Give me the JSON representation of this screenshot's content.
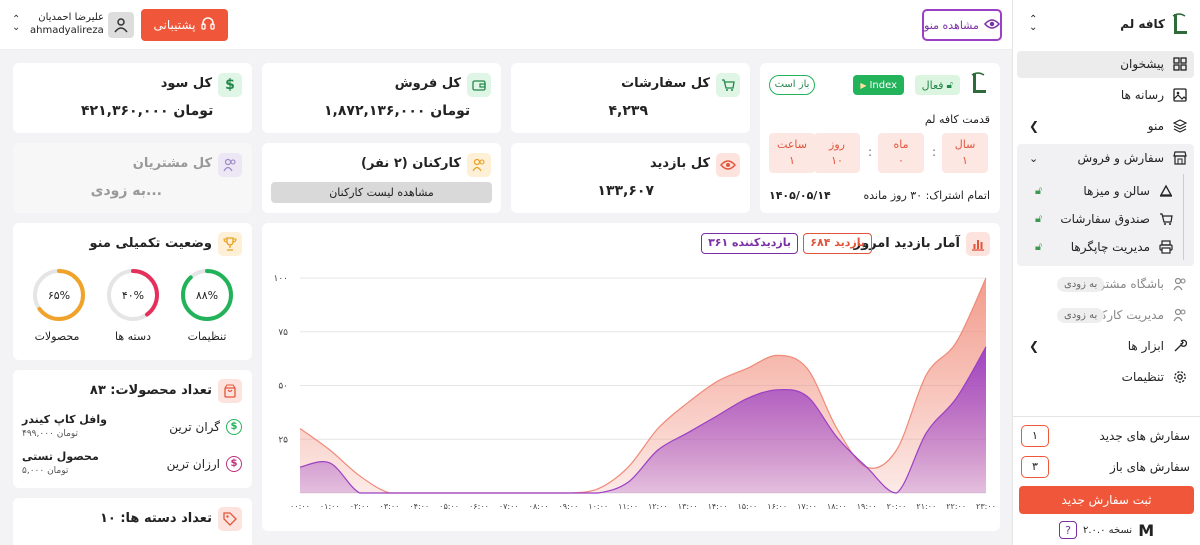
{
  "header": {
    "preview_menu": "مشاهده منو",
    "support": "پشتیبانی",
    "user_name": "علیرضا احمدیان",
    "user_handle": "ahmadyalireza\\1..."
  },
  "sidebar": {
    "brand": "کافه لم",
    "items": [
      {
        "label": "پیشخوان"
      },
      {
        "label": "رسانه ها"
      },
      {
        "label": "منو"
      },
      {
        "label": "سفارش و فروش"
      },
      {
        "label": "سالن و میزها"
      },
      {
        "label": "صندوق سفارشات"
      },
      {
        "label": "مدیریت چاپگرها"
      },
      {
        "label": "باشگاه مشتریان",
        "badge": "به زودی"
      },
      {
        "label": "مدیریت کارکنان",
        "badge": "به زودی"
      },
      {
        "label": "ابزار ها"
      },
      {
        "label": "تنظیمات"
      }
    ],
    "new_orders_label": "سفارش های جدید",
    "new_orders_count": "۱",
    "open_orders_label": "سفارش های باز",
    "open_orders_count": "۳",
    "submit_order": "ثبت سفارش جدید",
    "version": "نسخه ۲.۰.۰"
  },
  "cafe_card": {
    "status_open": "باز است",
    "status_active": "فعال",
    "index_badge": "Index",
    "seniority_label": "قدمت کافه لم",
    "units": [
      {
        "label": "سال",
        "value": "۱"
      },
      {
        "label": "ماه",
        "value": "۰"
      },
      {
        "label": "روز",
        "value": "۱۰"
      },
      {
        "label": "ساعت",
        "value": "۱"
      }
    ],
    "subscription_text": "اتمام اشتراک: ۳۰ روز مانده",
    "subscription_date": "۱۴۰۵/۰۵/۱۴"
  },
  "stats": {
    "orders_title": "کل سفارشات",
    "orders_value": "۴,۲۳۹",
    "sales_title": "کل فروش",
    "sales_value": "۱,۸۷۲,۱۳۶,۰۰۰ تومان",
    "profit_title": "کل سود",
    "profit_value": "۴۲۱,۳۶۰,۰۰۰ تومان",
    "visits_title": "کل بازدید",
    "visits_value": "۱۳۳,۶۰۷",
    "staff_title": "کارکنان (۲ نفر)",
    "staff_button": "مشاهده لیست کارکنان",
    "customers_title": "کل مشتریان",
    "customers_value": "به زودی..."
  },
  "menu_completion": {
    "title": "وضعیت تکمیلی منو",
    "rings": [
      {
        "label": "تنظیمات",
        "value_text": "۸۸%",
        "value": 88,
        "color": "#22b35a"
      },
      {
        "label": "دسته ها",
        "value_text": "۴۰%",
        "value": 40,
        "color": "#e6305c"
      },
      {
        "label": "محصولات",
        "value_text": "۶۵%",
        "value": 65,
        "color": "#f0a32a"
      }
    ]
  },
  "products": {
    "title": "تعداد محصولات: ۸۳",
    "most_expensive_label": "گران ترین",
    "most_expensive_name": "وافل کاپ کیندر",
    "most_expensive_price": "۴۹۹,۰۰۰ تومان",
    "cheapest_label": "ارزان ترین",
    "cheapest_name": "محصول تستی",
    "cheapest_price": "۵,۰۰۰ تومان"
  },
  "categories": {
    "title": "تعداد دسته ها: ۱۰"
  },
  "chart_data": {
    "type": "area",
    "title": "آمار بازدید امروز",
    "badge_visits": "۶۸۴ بازدید",
    "badge_visitors": "۳۶۱ بازدیدکننده",
    "ylim": [
      0,
      100
    ],
    "y_ticks": [
      "۱۰۰",
      "۷۵",
      "۵۰",
      "۲۵"
    ],
    "x": [
      "۰۰:۰۰",
      "۰۱:۰۰",
      "۰۲:۰۰",
      "۰۳:۰۰",
      "۰۴:۰۰",
      "۰۵:۰۰",
      "۰۶:۰۰",
      "۰۷:۰۰",
      "۰۸:۰۰",
      "۰۹:۰۰",
      "۱۰:۰۰",
      "۱۱:۰۰",
      "۱۲:۰۰",
      "۱۳:۰۰",
      "۱۴:۰۰",
      "۱۵:۰۰",
      "۱۶:۰۰",
      "۱۷:۰۰",
      "۱۸:۰۰",
      "۱۹:۰۰",
      "۲۰:۰۰",
      "۲۱:۰۰",
      "۲۲:۰۰",
      "۲۳:۰۰"
    ],
    "series": [
      {
        "values": [
          30,
          20,
          8,
          0,
          0,
          0,
          0,
          0,
          0,
          0,
          2,
          12,
          30,
          42,
          52,
          58,
          64,
          58,
          30,
          12,
          20,
          55,
          70,
          100
        ],
        "color": "#f08a78"
      },
      {
        "values": [
          12,
          14,
          0,
          0,
          0,
          0,
          0,
          0,
          0,
          0,
          0,
          5,
          20,
          28,
          36,
          44,
          48,
          45,
          26,
          12,
          0,
          28,
          44,
          68
        ],
        "color": "#9b3fc4"
      }
    ]
  }
}
